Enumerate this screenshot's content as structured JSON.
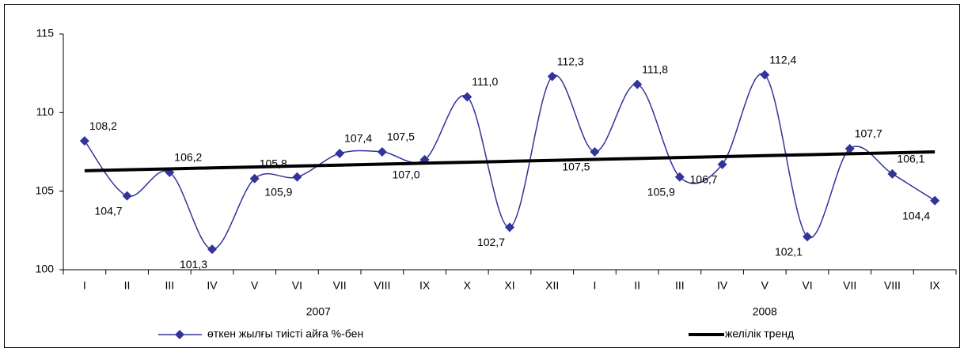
{
  "chart_data": {
    "type": "line",
    "categories": [
      "I",
      "II",
      "III",
      "IV",
      "V",
      "VI",
      "VII",
      "VIII",
      "IX",
      "X",
      "XI",
      "XII",
      "I",
      "II",
      "III",
      "IV",
      "V",
      "VI",
      "VII",
      "VIII",
      "IX"
    ],
    "years": [
      "2007",
      "2008"
    ],
    "series": [
      {
        "name": "өткен жылғы тиісті айға %-бен",
        "color": "#333399",
        "marker": "diamond",
        "values": [
          108.2,
          104.7,
          106.2,
          101.3,
          105.8,
          105.9,
          107.4,
          107.5,
          107.0,
          111.0,
          102.7,
          112.3,
          107.5,
          111.8,
          105.9,
          106.7,
          112.4,
          102.1,
          107.7,
          106.1,
          104.4
        ],
        "value_labels": [
          "108,2",
          "104,7",
          "106,2",
          "101,3",
          "105,8",
          "105,9",
          "107,4",
          "107,5",
          "107,0",
          "111,0",
          "102,7",
          "112,3",
          "107,5",
          "111,8",
          "105,9",
          "106,7",
          "112,4",
          "102,1",
          "107,7",
          "106,1",
          "104,4"
        ]
      },
      {
        "name": "желілік тренд",
        "color": "#000000",
        "values": [
          106.3,
          106.36,
          106.42,
          106.48,
          106.54,
          106.6,
          106.66,
          106.72,
          106.78,
          106.84,
          106.9,
          106.96,
          107.02,
          107.08,
          107.14,
          107.2,
          107.26,
          107.32,
          107.38,
          107.44,
          107.5
        ]
      }
    ],
    "ylim": [
      100,
      115
    ],
    "yticks": [
      100,
      105,
      110,
      115
    ],
    "grid": false,
    "legend": "bottom"
  }
}
